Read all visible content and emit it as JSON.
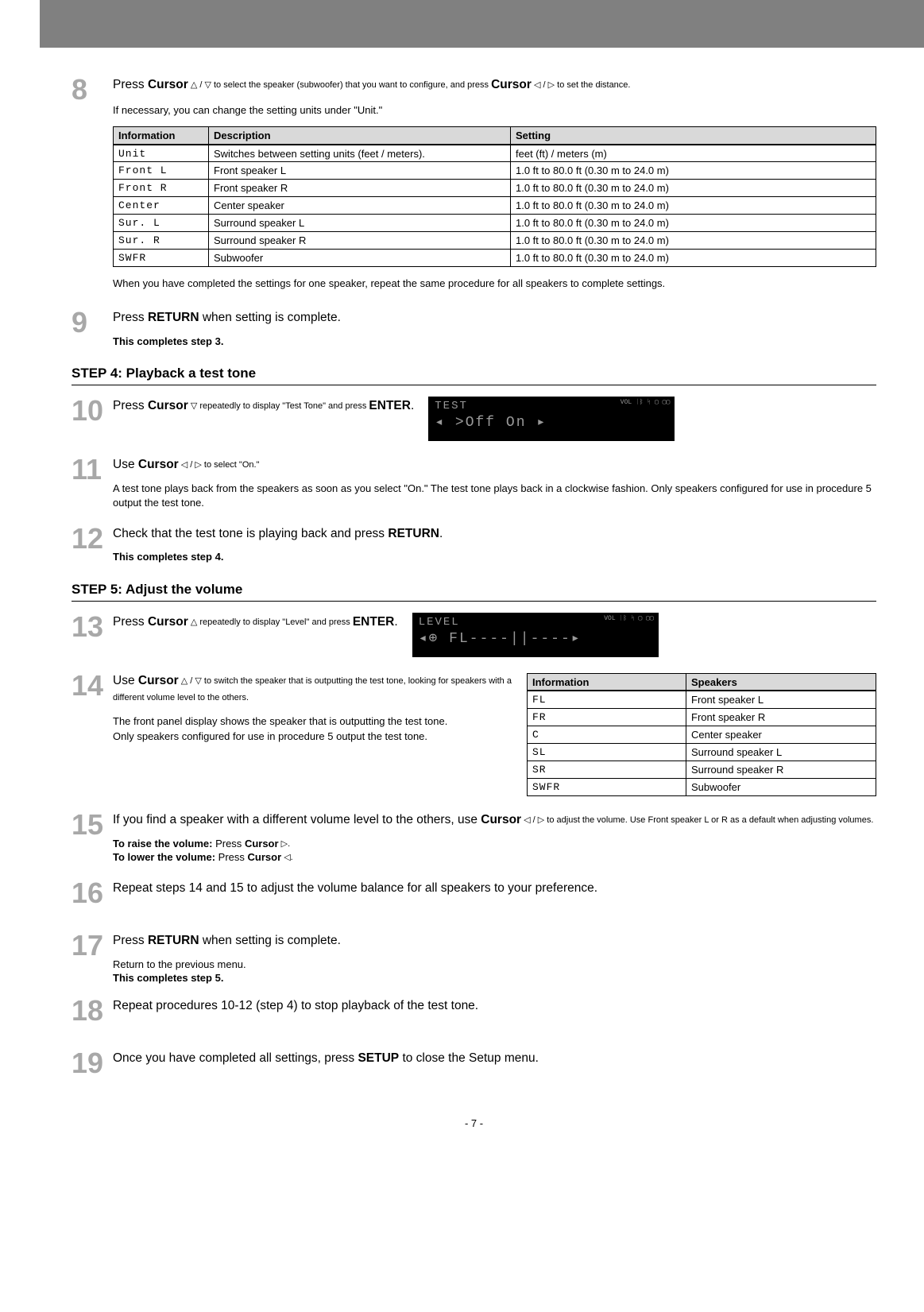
{
  "step8": {
    "num": "8",
    "instr_a": "Press ",
    "instr_cursor1": "Cursor",
    "instr_b": " △ / ▽ to select the speaker (subwoofer) that you want to configure, and press ",
    "instr_cursor2": "Cursor",
    "instr_c": " ◁ / ▷ to set the distance.",
    "sub": "If necessary, you can change the setting units under \"Unit.\"",
    "table": {
      "headers": [
        "Information",
        "Description",
        "Setting"
      ],
      "rows": [
        [
          "Unit",
          "Switches between setting units (feet / meters).",
          "feet (ft) / meters (m)"
        ],
        [
          "Front L",
          "Front speaker L",
          "1.0 ft to 80.0 ft (0.30 m to 24.0 m)"
        ],
        [
          "Front R",
          "Front speaker R",
          "1.0 ft to 80.0 ft (0.30 m to 24.0 m)"
        ],
        [
          "Center",
          "Center speaker",
          "1.0 ft to 80.0 ft (0.30 m to 24.0 m)"
        ],
        [
          "Sur. L",
          "Surround speaker L",
          "1.0 ft to 80.0 ft (0.30 m to 24.0 m)"
        ],
        [
          "Sur. R",
          "Surround speaker R",
          "1.0 ft to 80.0 ft (0.30 m to 24.0 m)"
        ],
        [
          "SWFR",
          "Subwoofer",
          "1.0 ft to 80.0 ft (0.30 m to 24.0 m)"
        ]
      ]
    },
    "after_table": "When you have completed the settings for one speaker, repeat the same procedure for all speakers to complete settings."
  },
  "step9": {
    "num": "9",
    "instr_a": "Press ",
    "instr_b": "RETURN",
    "instr_c": " when setting is complete.",
    "note": "This completes step 3."
  },
  "section4": "STEP 4: Playback a test tone",
  "step10": {
    "num": "10",
    "instr_a": "Press ",
    "instr_b": "Cursor",
    "instr_c": " ▽ repeatedly to display \"Test Tone\" and press ",
    "instr_d": "ENTER",
    "instr_e": ".",
    "display": {
      "l1": " TEST",
      "l2": "◂  >Off    On  ▸",
      "tiny": "VOL  ᛁᛒ ᛋ\n▢ ▢▢"
    }
  },
  "step11": {
    "num": "11",
    "instr_a": "Use ",
    "instr_b": "Cursor",
    "instr_c": " ◁ / ▷ to select \"On.\"",
    "note": "A test tone plays back from the speakers as soon as you select \"On.\" The test tone plays back in a clockwise fashion. Only speakers configured for use in procedure 5 output the test tone."
  },
  "step12": {
    "num": "12",
    "instr_a": "Check that the test tone is playing back and press ",
    "instr_b": "RETURN",
    "instr_c": ".",
    "note": "This completes step 4."
  },
  "section5": "STEP 5: Adjust the volume",
  "step13": {
    "num": "13",
    "instr_a": "Press ",
    "instr_b": "Cursor",
    "instr_c": " △ repeatedly to display \"Level\" and press ",
    "instr_d": "ENTER",
    "instr_e": ".",
    "display": {
      "l1": " LEVEL",
      "l2": "◂⊕  FL----||----▸",
      "tiny": "VOL  ᛁᛒ ᛋ\n▢ ▢▢"
    }
  },
  "step14": {
    "num": "14",
    "instr_a": "Use ",
    "instr_b": "Cursor",
    "instr_c": " △ / ▽ to switch the speaker that is outputting the test tone, looking for speakers with a different volume level to the others.",
    "note1": "The front panel display shows the speaker that is outputting the test tone.",
    "note2": "Only speakers configured for use in procedure 5 output the test tone.",
    "table": {
      "headers": [
        "Information",
        "Speakers"
      ],
      "rows": [
        [
          "FL",
          "Front speaker L"
        ],
        [
          "FR",
          "Front speaker R"
        ],
        [
          "C",
          "Center speaker"
        ],
        [
          "SL",
          "Surround speaker L"
        ],
        [
          "SR",
          "Surround speaker R"
        ],
        [
          "SWFR",
          "Subwoofer"
        ]
      ]
    }
  },
  "step15": {
    "num": "15",
    "instr_a": "If you find a speaker with a different volume level to the others, use ",
    "instr_b": "Cursor",
    "instr_c": " ◁ / ▷ to adjust the volume. Use Front speaker L or R as a default when adjusting volumes.",
    "note_raise_a": "To raise the volume:",
    "note_raise_b": " Press ",
    "note_raise_c": "Cursor",
    "note_raise_d": " ▷.",
    "note_lower_a": "To lower the volume:",
    "note_lower_b": " Press ",
    "note_lower_c": "Cursor",
    "note_lower_d": " ◁."
  },
  "step16": {
    "num": "16",
    "instr": "Repeat steps 14 and 15 to adjust the volume balance for all speakers to your preference."
  },
  "step17": {
    "num": "17",
    "instr_a": "Press ",
    "instr_b": "RETURN",
    "instr_c": " when setting is complete.",
    "note1": "Return to the previous menu.",
    "note2": "This completes step 5."
  },
  "step18": {
    "num": "18",
    "instr": "Repeat procedures 10-12 (step 4) to stop playback of the test tone."
  },
  "step19": {
    "num": "19",
    "instr_a": "Once you have completed all settings, press ",
    "instr_b": "SETUP",
    "instr_c": " to close the Setup menu."
  },
  "footer": "- 7 -"
}
